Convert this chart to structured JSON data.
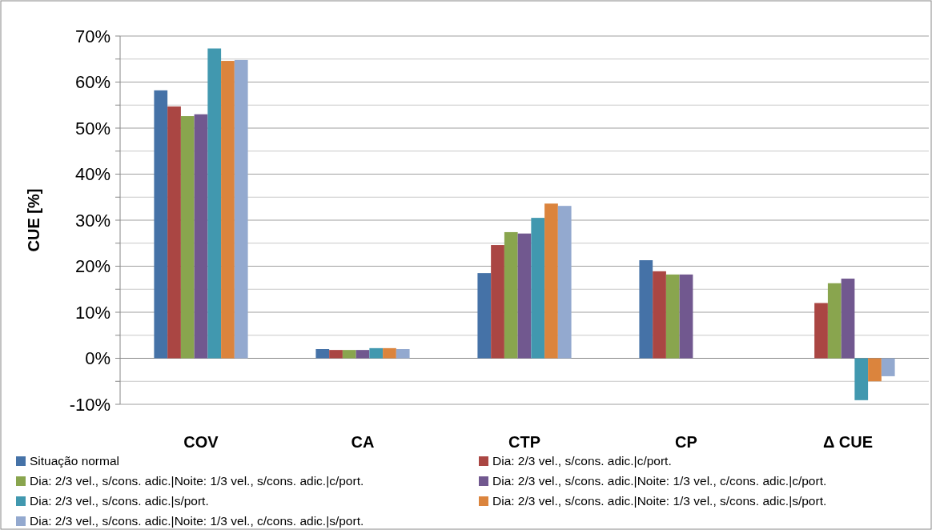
{
  "chart_data": {
    "type": "bar",
    "ylabel": "CUE [%]",
    "categories": [
      "COV",
      "CA",
      "CTP",
      "CP",
      "Δ CUE"
    ],
    "series": [
      {
        "name": "Situação normal",
        "color": "#4572a7",
        "values": [
          58.2,
          2.0,
          18.5,
          21.3,
          null
        ]
      },
      {
        "name": "Dia: 2/3 vel., s/cons. adic.|c/port.",
        "color": "#aa4643",
        "values": [
          54.7,
          1.8,
          24.6,
          18.9,
          12.0
        ]
      },
      {
        "name": "Dia: 2/3 vel., s/cons. adic.|Noite: 1/3 vel., s/cons. adic.|c/port.",
        "color": "#89a54e",
        "values": [
          52.6,
          1.8,
          27.4,
          18.2,
          16.3
        ]
      },
      {
        "name": "Dia: 2/3 vel., s/cons. adic.|Noite: 1/3 vel., c/cons. adic.|c/port.",
        "color": "#71588f",
        "values": [
          53.0,
          1.8,
          27.1,
          18.2,
          17.3
        ]
      },
      {
        "name": "Dia: 2/3 vel., s/cons. adic.|s/port.",
        "color": "#4198af",
        "values": [
          67.3,
          2.2,
          30.5,
          null,
          -9.1
        ]
      },
      {
        "name": "Dia: 2/3 vel., s/cons. adic.|Noite: 1/3 vel., s/cons. adic.|s/port.",
        "color": "#db843d",
        "values": [
          64.6,
          2.2,
          33.6,
          null,
          -5.0
        ]
      },
      {
        "name": "Dia: 2/3 vel., s/cons. adic.|Noite: 1/3 vel., c/cons. adic.|s/port.",
        "color": "#93a9cf",
        "values": [
          64.8,
          2.0,
          33.1,
          null,
          -3.9
        ]
      }
    ],
    "ylim": [
      -10,
      70
    ],
    "yticks": [
      {
        "value": -10,
        "label": "-10%"
      },
      {
        "value": -5,
        "label": null
      },
      {
        "value": 0,
        "label": "0%"
      },
      {
        "value": 5,
        "label": null
      },
      {
        "value": 10,
        "label": "10%"
      },
      {
        "value": 15,
        "label": null
      },
      {
        "value": 20,
        "label": "20%"
      },
      {
        "value": 25,
        "label": null
      },
      {
        "value": 30,
        "label": "30%"
      },
      {
        "value": 35,
        "label": null
      },
      {
        "value": 40,
        "label": "40%"
      },
      {
        "value": 45,
        "label": null
      },
      {
        "value": 50,
        "label": "50%"
      },
      {
        "value": 55,
        "label": null
      },
      {
        "value": 60,
        "label": "60%"
      },
      {
        "value": 65,
        "label": null
      },
      {
        "value": 70,
        "label": "70%"
      }
    ],
    "grid": true,
    "legend": "bottom"
  }
}
